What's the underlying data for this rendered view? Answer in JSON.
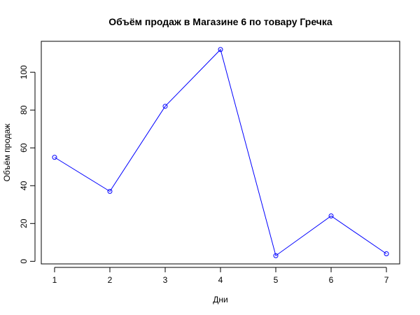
{
  "chart_data": {
    "type": "line",
    "title": "Объём продаж в Магазине 6 по товару Гречка",
    "xlabel": "Дни",
    "ylabel": "Объём продаж",
    "x": [
      1,
      2,
      3,
      4,
      5,
      6,
      7
    ],
    "x_ticks": [
      "1",
      "2",
      "3",
      "4",
      "5",
      "6",
      "7"
    ],
    "y_ticks": [
      "0",
      "20",
      "40",
      "60",
      "80",
      "100"
    ],
    "xlim": [
      0.76,
      7.24
    ],
    "ylim": [
      -1.36,
      116.36
    ],
    "series": [
      {
        "values": [
          55,
          37,
          82,
          112,
          3,
          24,
          4
        ]
      }
    ],
    "marker": "open-circle",
    "grid": false,
    "colors": {
      "series": "#0000FF",
      "axes": "#000000"
    }
  }
}
